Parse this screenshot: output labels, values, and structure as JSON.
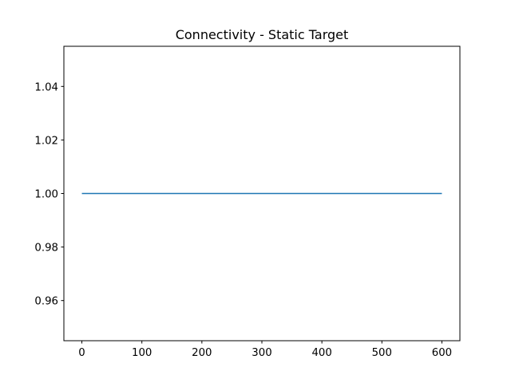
{
  "chart_data": {
    "type": "line",
    "title": "Connectivity - Static Target",
    "xlabel": "",
    "ylabel": "",
    "xlim": [
      -30,
      630
    ],
    "ylim": [
      0.945,
      1.055
    ],
    "x_ticks": [
      0,
      100,
      200,
      300,
      400,
      500,
      600
    ],
    "x_tick_labels": [
      "0",
      "100",
      "200",
      "300",
      "400",
      "500",
      "600"
    ],
    "y_ticks": [
      0.96,
      0.98,
      1.0,
      1.02,
      1.04
    ],
    "y_tick_labels": [
      "0.96",
      "0.98",
      "1.00",
      "1.02",
      "1.04"
    ],
    "grid": false,
    "legend": "none",
    "series": [
      {
        "color": "#1f77b4",
        "x": [
          0,
          600
        ],
        "y": [
          1.0,
          1.0
        ]
      }
    ]
  }
}
